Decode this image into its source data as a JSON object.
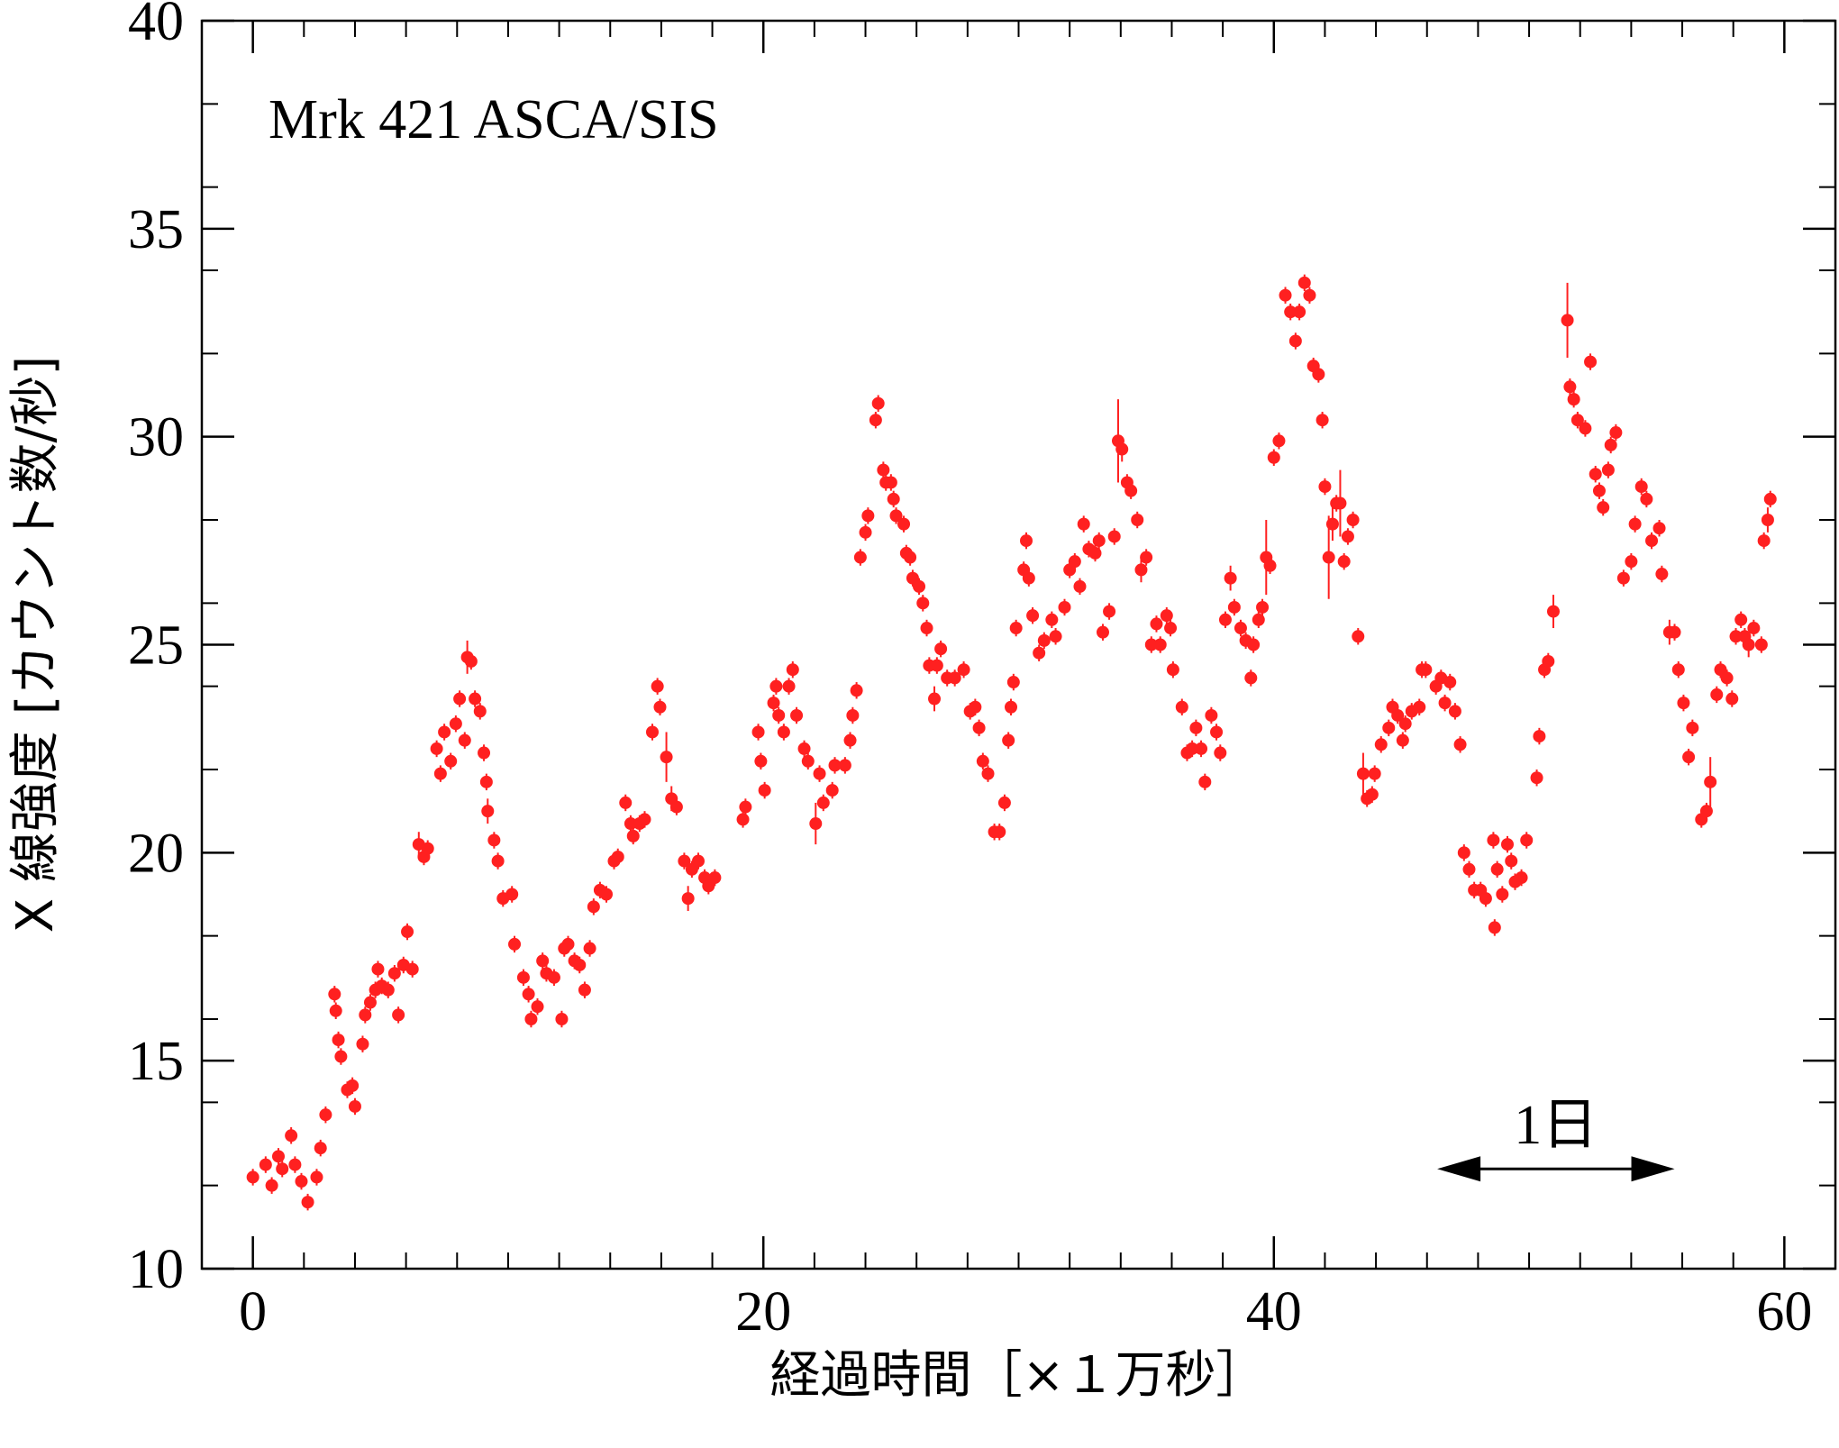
{
  "chart_data": {
    "type": "scatter",
    "title": "Mrk 421 ASCA/SIS",
    "xlabel": "経過時間［×１万秒］",
    "ylabel": "X 線強度 [カウント数/秒]",
    "color": "#ff2020",
    "xlim": [
      -2,
      62
    ],
    "ylim": [
      10,
      40
    ],
    "xticks": [
      0,
      20,
      40,
      60
    ],
    "yticks": [
      10,
      15,
      20,
      25,
      30,
      35,
      40
    ],
    "xticks_minor": [
      2,
      4,
      6,
      8,
      10,
      12,
      14,
      16,
      18,
      22,
      24,
      26,
      28,
      30,
      32,
      34,
      36,
      38,
      42,
      44,
      46,
      48,
      50,
      52,
      54,
      56,
      58
    ],
    "yticks_minor": [
      12,
      14,
      16,
      18,
      22,
      24,
      26,
      28,
      32,
      34,
      36,
      38
    ],
    "annotations": [
      {
        "text": "1日",
        "x0": 46.4,
        "x1": 55.7,
        "y": 12.4
      }
    ],
    "series": [
      {
        "x": [
          0.0,
          0.5,
          0.74,
          1.0,
          1.15,
          1.5,
          1.65,
          1.9,
          2.15,
          2.5,
          2.65,
          2.85,
          3.2,
          3.25,
          3.35,
          3.45,
          3.7,
          3.9,
          4.0,
          4.3,
          4.4,
          4.6,
          4.8,
          4.9,
          5.05,
          5.3,
          5.55,
          5.7,
          5.9,
          6.05,
          6.25,
          6.5,
          6.7,
          6.85,
          7.2,
          7.35,
          7.5,
          7.75,
          7.95,
          8.1,
          8.3,
          8.4,
          8.55,
          8.7,
          8.9,
          9.05,
          9.15,
          9.2,
          9.45,
          9.6,
          9.8,
          10.15,
          10.25,
          10.6,
          10.8,
          10.9,
          11.15,
          11.35,
          11.5,
          11.8,
          12.1,
          12.2,
          12.35,
          12.6,
          12.8,
          13.0,
          13.2,
          13.35,
          13.6,
          13.85,
          14.15,
          14.3,
          14.6,
          14.8,
          14.9,
          15.15,
          15.35,
          15.65,
          15.85,
          15.95,
          16.2,
          16.4,
          16.6,
          16.9,
          17.05,
          17.2,
          17.45,
          17.7,
          17.85,
          18.1,
          19.2,
          19.3,
          19.8,
          19.9,
          20.05,
          20.4,
          20.5,
          20.6,
          20.8,
          21.0,
          21.15,
          21.3,
          21.6,
          21.75,
          22.05,
          22.2,
          22.35,
          22.7,
          22.8,
          23.2,
          23.4,
          23.5,
          23.65,
          23.8,
          24.0,
          24.1,
          24.4,
          24.5,
          24.7,
          24.8,
          25.0,
          25.1,
          25.2,
          25.5,
          25.6,
          25.75,
          25.85,
          26.1,
          26.25,
          26.4,
          26.5,
          26.7,
          26.8,
          26.95,
          27.2,
          27.5,
          27.85,
          28.1,
          28.3,
          28.45,
          28.6,
          28.8,
          29.05,
          29.25,
          29.45,
          29.6,
          29.7,
          29.8,
          29.9,
          30.2,
          30.3,
          30.4,
          30.55,
          30.8,
          31.0,
          31.3,
          31.45,
          31.8,
          32.0,
          32.2,
          32.4,
          32.55,
          32.75,
          33.0,
          33.15,
          33.3,
          33.55,
          33.75,
          33.9,
          34.05,
          34.25,
          34.4,
          34.65,
          34.8,
          35.0,
          35.2,
          35.4,
          35.55,
          35.8,
          35.95,
          36.05,
          36.4,
          36.6,
          36.8,
          36.95,
          37.15,
          37.3,
          37.55,
          37.75,
          37.9,
          38.1,
          38.3,
          38.45,
          38.7,
          38.9,
          39.1,
          39.2,
          39.4,
          39.55,
          39.7,
          39.85,
          40.0,
          40.2,
          40.45,
          40.65,
          40.85,
          41.0,
          41.2,
          41.4,
          41.55,
          41.75,
          41.9,
          42.0,
          42.15,
          42.3,
          42.45,
          42.6,
          42.75,
          42.9,
          43.1,
          43.3,
          43.5,
          43.65,
          43.85,
          43.95,
          44.2,
          44.5,
          44.65,
          44.85,
          45.05,
          45.15,
          45.4,
          45.7,
          45.8,
          45.95,
          46.35,
          46.55,
          46.7,
          46.9,
          47.1,
          47.3,
          47.45,
          47.65,
          47.85,
          48.1,
          48.3,
          48.6,
          48.65,
          48.75,
          48.95,
          49.15,
          49.3,
          49.45,
          49.7,
          49.9,
          50.3,
          50.4,
          50.6,
          50.75,
          50.95,
          51.5,
          51.6,
          51.75,
          51.9,
          52.2,
          52.4,
          52.6,
          52.75,
          52.9,
          53.1,
          53.2,
          53.4,
          53.7,
          54.0,
          54.15,
          54.4,
          54.6,
          54.8,
          55.1,
          55.2,
          55.5,
          55.7,
          55.85,
          56.05,
          56.25,
          56.4,
          56.75,
          56.95,
          57.1,
          57.35,
          57.5,
          57.75,
          57.95,
          58.1,
          58.3,
          58.45,
          58.6,
          58.8,
          59.1,
          59.2,
          59.35,
          59.45
        ],
        "values": [
          12.2,
          12.5,
          12.0,
          12.7,
          12.4,
          13.2,
          12.5,
          12.1,
          11.6,
          12.2,
          12.9,
          13.7,
          16.6,
          16.2,
          15.5,
          15.1,
          14.3,
          14.4,
          13.9,
          15.4,
          16.1,
          16.4,
          16.7,
          17.2,
          16.8,
          16.7,
          17.1,
          16.1,
          17.3,
          18.1,
          17.2,
          20.2,
          19.9,
          20.1,
          22.5,
          21.9,
          22.9,
          22.2,
          23.1,
          23.7,
          22.7,
          24.7,
          24.6,
          23.7,
          23.4,
          22.4,
          21.7,
          21.0,
          20.3,
          19.8,
          18.9,
          19.0,
          17.8,
          17.0,
          16.6,
          16.0,
          16.3,
          17.4,
          17.1,
          17.0,
          16.0,
          17.7,
          17.8,
          17.4,
          17.3,
          16.7,
          17.7,
          18.7,
          19.1,
          19.0,
          19.8,
          19.9,
          21.2,
          20.7,
          20.4,
          20.7,
          20.8,
          22.9,
          24.0,
          23.5,
          22.3,
          21.3,
          21.1,
          19.8,
          18.9,
          19.6,
          19.8,
          19.4,
          19.2,
          19.4,
          20.8,
          21.1,
          22.9,
          22.2,
          21.5,
          23.6,
          24.0,
          23.3,
          22.9,
          24.0,
          24.4,
          23.3,
          22.5,
          22.2,
          20.7,
          21.9,
          21.2,
          21.5,
          22.1,
          22.1,
          22.7,
          23.3,
          23.9,
          27.1,
          27.7,
          28.1,
          30.4,
          30.8,
          29.2,
          28.9,
          28.9,
          28.5,
          28.1,
          27.9,
          27.2,
          27.1,
          26.6,
          26.4,
          26.0,
          25.4,
          24.5,
          23.7,
          24.5,
          24.9,
          24.2,
          24.2,
          24.4,
          23.4,
          23.5,
          23.0,
          22.2,
          21.9,
          20.5,
          20.5,
          21.2,
          22.7,
          23.5,
          24.1,
          25.4,
          26.8,
          27.5,
          26.6,
          25.7,
          24.8,
          25.1,
          25.6,
          25.2,
          25.9,
          26.8,
          27.0,
          26.4,
          27.9,
          27.3,
          27.2,
          27.5,
          25.3,
          25.8,
          27.6,
          29.9,
          29.7,
          28.9,
          28.7,
          28.0,
          26.8,
          27.1,
          25.0,
          25.5,
          25.0,
          25.7,
          25.4,
          24.4,
          23.5,
          22.4,
          22.5,
          23.0,
          22.5,
          21.7,
          23.3,
          22.9,
          22.4,
          25.6,
          26.6,
          25.9,
          25.4,
          25.1,
          24.2,
          25.0,
          25.6,
          25.9,
          27.1,
          26.9,
          29.5,
          29.9,
          33.4,
          33.0,
          32.3,
          33.0,
          33.7,
          33.4,
          31.7,
          31.5,
          30.4,
          28.8,
          27.1,
          27.9,
          28.4,
          28.4,
          27.0,
          27.6,
          28.0,
          25.2,
          21.9,
          21.3,
          21.4,
          21.9,
          22.6,
          23.0,
          23.5,
          23.3,
          22.7,
          23.1,
          23.4,
          23.5,
          24.4,
          24.4,
          24.0,
          24.2,
          23.6,
          24.1,
          23.4,
          22.6,
          20.0,
          19.6,
          19.1,
          19.1,
          18.9,
          20.3,
          18.2,
          19.6,
          19.0,
          20.2,
          19.8,
          19.3,
          19.4,
          20.3,
          21.8,
          22.8,
          24.4,
          24.6,
          25.8,
          32.8,
          31.2,
          30.9,
          30.4,
          30.2,
          31.8,
          29.1,
          28.7,
          28.3,
          29.2,
          29.8,
          30.1,
          26.6,
          27.0,
          27.9,
          28.8,
          28.5,
          27.5,
          27.8,
          26.7,
          25.3,
          25.3,
          24.4,
          23.6,
          22.3,
          23.0,
          20.8,
          21.0,
          21.7,
          23.8,
          24.4,
          24.2,
          23.7,
          25.2,
          25.6,
          25.2,
          25.0,
          25.4,
          25.0,
          27.5,
          28.0,
          28.5
        ],
        "errors": [
          0.2,
          0.2,
          0.2,
          0.2,
          0.2,
          0.2,
          0.2,
          0.2,
          0.2,
          0.2,
          0.2,
          0.2,
          0.2,
          0.2,
          0.2,
          0.2,
          0.2,
          0.2,
          0.2,
          0.2,
          0.2,
          0.2,
          0.2,
          0.2,
          0.2,
          0.2,
          0.2,
          0.2,
          0.2,
          0.2,
          0.2,
          0.3,
          0.2,
          0.2,
          0.2,
          0.2,
          0.2,
          0.2,
          0.2,
          0.2,
          0.2,
          0.4,
          0.2,
          0.2,
          0.2,
          0.2,
          0.2,
          0.3,
          0.2,
          0.2,
          0.2,
          0.2,
          0.2,
          0.2,
          0.2,
          0.2,
          0.2,
          0.2,
          0.2,
          0.2,
          0.2,
          0.2,
          0.2,
          0.2,
          0.2,
          0.2,
          0.2,
          0.2,
          0.2,
          0.2,
          0.2,
          0.2,
          0.2,
          0.2,
          0.2,
          0.2,
          0.2,
          0.2,
          0.2,
          0.2,
          0.6,
          0.3,
          0.2,
          0.2,
          0.3,
          0.2,
          0.2,
          0.2,
          0.2,
          0.2,
          0.2,
          0.2,
          0.2,
          0.2,
          0.2,
          0.2,
          0.2,
          0.2,
          0.2,
          0.2,
          0.2,
          0.2,
          0.2,
          0.2,
          0.5,
          0.2,
          0.2,
          0.2,
          0.2,
          0.2,
          0.2,
          0.2,
          0.2,
          0.2,
          0.2,
          0.2,
          0.2,
          0.2,
          0.2,
          0.2,
          0.2,
          0.2,
          0.2,
          0.2,
          0.2,
          0.2,
          0.2,
          0.2,
          0.2,
          0.2,
          0.2,
          0.3,
          0.2,
          0.2,
          0.2,
          0.2,
          0.2,
          0.2,
          0.2,
          0.2,
          0.2,
          0.2,
          0.2,
          0.2,
          0.2,
          0.2,
          0.2,
          0.2,
          0.2,
          0.2,
          0.2,
          0.2,
          0.2,
          0.2,
          0.2,
          0.2,
          0.2,
          0.2,
          0.2,
          0.2,
          0.2,
          0.2,
          0.2,
          0.2,
          0.2,
          0.2,
          0.2,
          0.2,
          1.0,
          0.3,
          0.2,
          0.2,
          0.2,
          0.3,
          0.2,
          0.2,
          0.2,
          0.2,
          0.2,
          0.2,
          0.2,
          0.2,
          0.2,
          0.2,
          0.2,
          0.2,
          0.2,
          0.2,
          0.2,
          0.2,
          0.2,
          0.3,
          0.2,
          0.2,
          0.2,
          0.2,
          0.2,
          0.2,
          0.2,
          0.9,
          0.2,
          0.2,
          0.2,
          0.2,
          0.2,
          0.2,
          0.2,
          0.2,
          0.2,
          0.2,
          0.2,
          0.2,
          0.2,
          1.0,
          0.4,
          0.2,
          0.8,
          0.2,
          0.2,
          0.2,
          0.2,
          0.5,
          0.2,
          0.2,
          0.2,
          0.2,
          0.2,
          0.2,
          0.2,
          0.2,
          0.2,
          0.2,
          0.2,
          0.2,
          0.2,
          0.2,
          0.2,
          0.2,
          0.2,
          0.2,
          0.2,
          0.2,
          0.2,
          0.2,
          0.2,
          0.2,
          0.2,
          0.2,
          0.2,
          0.2,
          0.2,
          0.2,
          0.2,
          0.2,
          0.2,
          0.2,
          0.2,
          0.2,
          0.2,
          0.4,
          0.9,
          0.2,
          0.2,
          0.2,
          0.2,
          0.2,
          0.2,
          0.2,
          0.2,
          0.2,
          0.2,
          0.2,
          0.2,
          0.2,
          0.2,
          0.2,
          0.2,
          0.2,
          0.2,
          0.2,
          0.3,
          0.2,
          0.2,
          0.2,
          0.2,
          0.2,
          0.2,
          0.2,
          0.6,
          0.2,
          0.2,
          0.2,
          0.2,
          0.2,
          0.2,
          0.2,
          0.3,
          0.2,
          0.2,
          0.2,
          0.3,
          0.2
        ]
      }
    ]
  }
}
